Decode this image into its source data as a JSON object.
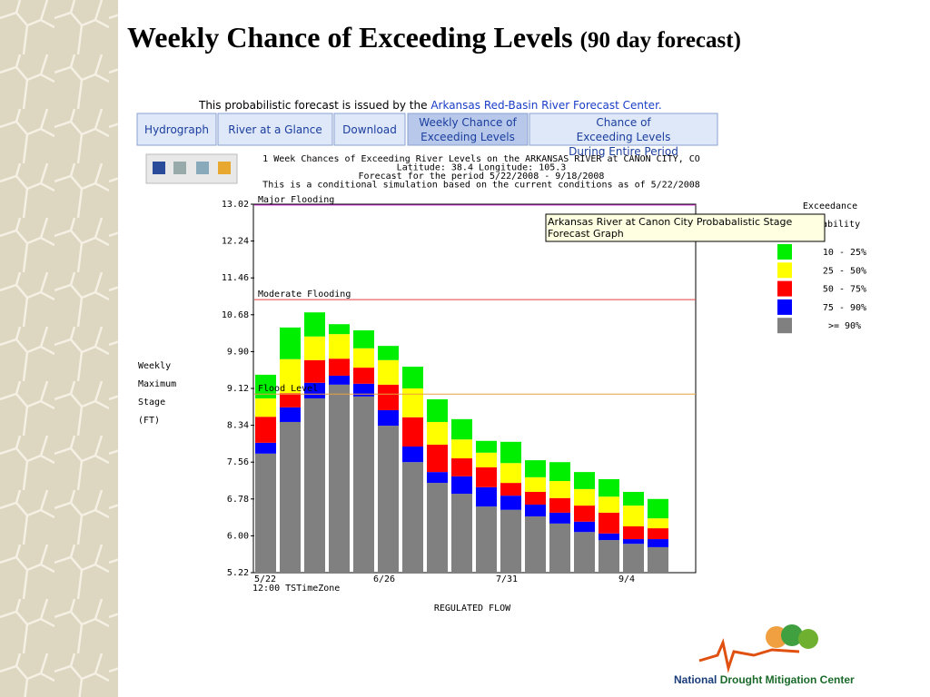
{
  "slide": {
    "title": "Weekly Chance of Exceeding Levels",
    "subtitle": "(90 day forecast)",
    "intro": "This probabilistic forecast is issued by the",
    "intro_link": "Arkansas Red-Basin River Forecast Center.",
    "tabs": [
      "Hydrograph",
      "River at a Glance",
      "Download",
      "Weekly Chance of Exceeding Levels",
      "Chance of Exceeding Levels During Entire Period"
    ],
    "tooltip": "Arkansas River at Canon City Probabalistic Stage Forecast Graph",
    "logo": {
      "first": "National",
      "rest": "Drought Mitigation Center"
    }
  },
  "chart_data": {
    "type": "range_bar",
    "header": [
      "1 Week Chances of Exceeding River Levels on the ARKANSAS RIVER at CANON CITY, CO",
      "Latitude: 38.4   Longitude:  105.3",
      "Forecast for the period 5/22/2008 - 9/18/2008",
      "This is a conditional simulation based on the current conditions as of 5/22/2008"
    ],
    "ylabel": [
      "Weekly",
      "Maximum",
      "Stage",
      "(FT)"
    ],
    "xlabel": "12:00 TSTimeZone",
    "footer": "REGULATED FLOW",
    "legend_title": [
      "Exceedance",
      "Probability"
    ],
    "categories": [
      "5/22",
      null,
      null,
      null,
      null,
      "6/26",
      null,
      null,
      null,
      null,
      "7/31",
      null,
      null,
      null,
      null,
      "9/4",
      null
    ],
    "series": [
      {
        "name": ">= 90%",
        "color": "#808080",
        "values": [
          7.74,
          8.41,
          8.91,
          9.2,
          8.95,
          8.33,
          7.56,
          7.12,
          6.89,
          6.62,
          6.55,
          6.41,
          6.26,
          6.08,
          5.91,
          5.83,
          5.76
        ]
      },
      {
        "name": "75 - 90%",
        "color": "#0000ff",
        "values": [
          7.97,
          8.72,
          9.24,
          9.39,
          9.22,
          8.66,
          7.89,
          7.35,
          7.26,
          7.03,
          6.85,
          6.66,
          6.49,
          6.3,
          6.05,
          5.93,
          5.93
        ]
      },
      {
        "name": "50 - 75%",
        "color": "#ff0000",
        "values": [
          8.52,
          9.02,
          9.72,
          9.75,
          9.56,
          9.2,
          8.51,
          7.93,
          7.64,
          7.45,
          7.12,
          6.93,
          6.8,
          6.64,
          6.49,
          6.2,
          6.16
        ]
      },
      {
        "name": "25 - 50%",
        "color": "#ffff00",
        "values": [
          8.91,
          9.74,
          10.22,
          10.27,
          9.97,
          9.72,
          9.12,
          8.41,
          8.04,
          7.76,
          7.54,
          7.24,
          7.16,
          6.99,
          6.83,
          6.64,
          6.37
        ]
      },
      {
        "name": "10 - 25%",
        "color": "#00ee00",
        "values": [
          9.41,
          10.41,
          10.73,
          10.48,
          10.35,
          10.02,
          9.58,
          8.89,
          8.47,
          8.01,
          7.99,
          7.6,
          7.56,
          7.35,
          7.2,
          6.93,
          6.78
        ]
      }
    ],
    "reference_lines": [
      {
        "label": "Major Flooding",
        "value": 13.0,
        "color": "#e040e0"
      },
      {
        "label": "Moderate Flooding",
        "value": 11.0,
        "color": "#e04040"
      },
      {
        "label": "Flood Level",
        "value": 9.0,
        "color": "#e8a040"
      }
    ],
    "ylim": [
      5.22,
      13.02
    ],
    "yticks": [
      5.22,
      {
        "value": 6,
        "label": "6.00"
      },
      6.78,
      7.56,
      8.34,
      9.12,
      {
        "value": 9.9,
        "label": "9.90"
      },
      10.68,
      11.46,
      12.24,
      13.02
    ]
  }
}
